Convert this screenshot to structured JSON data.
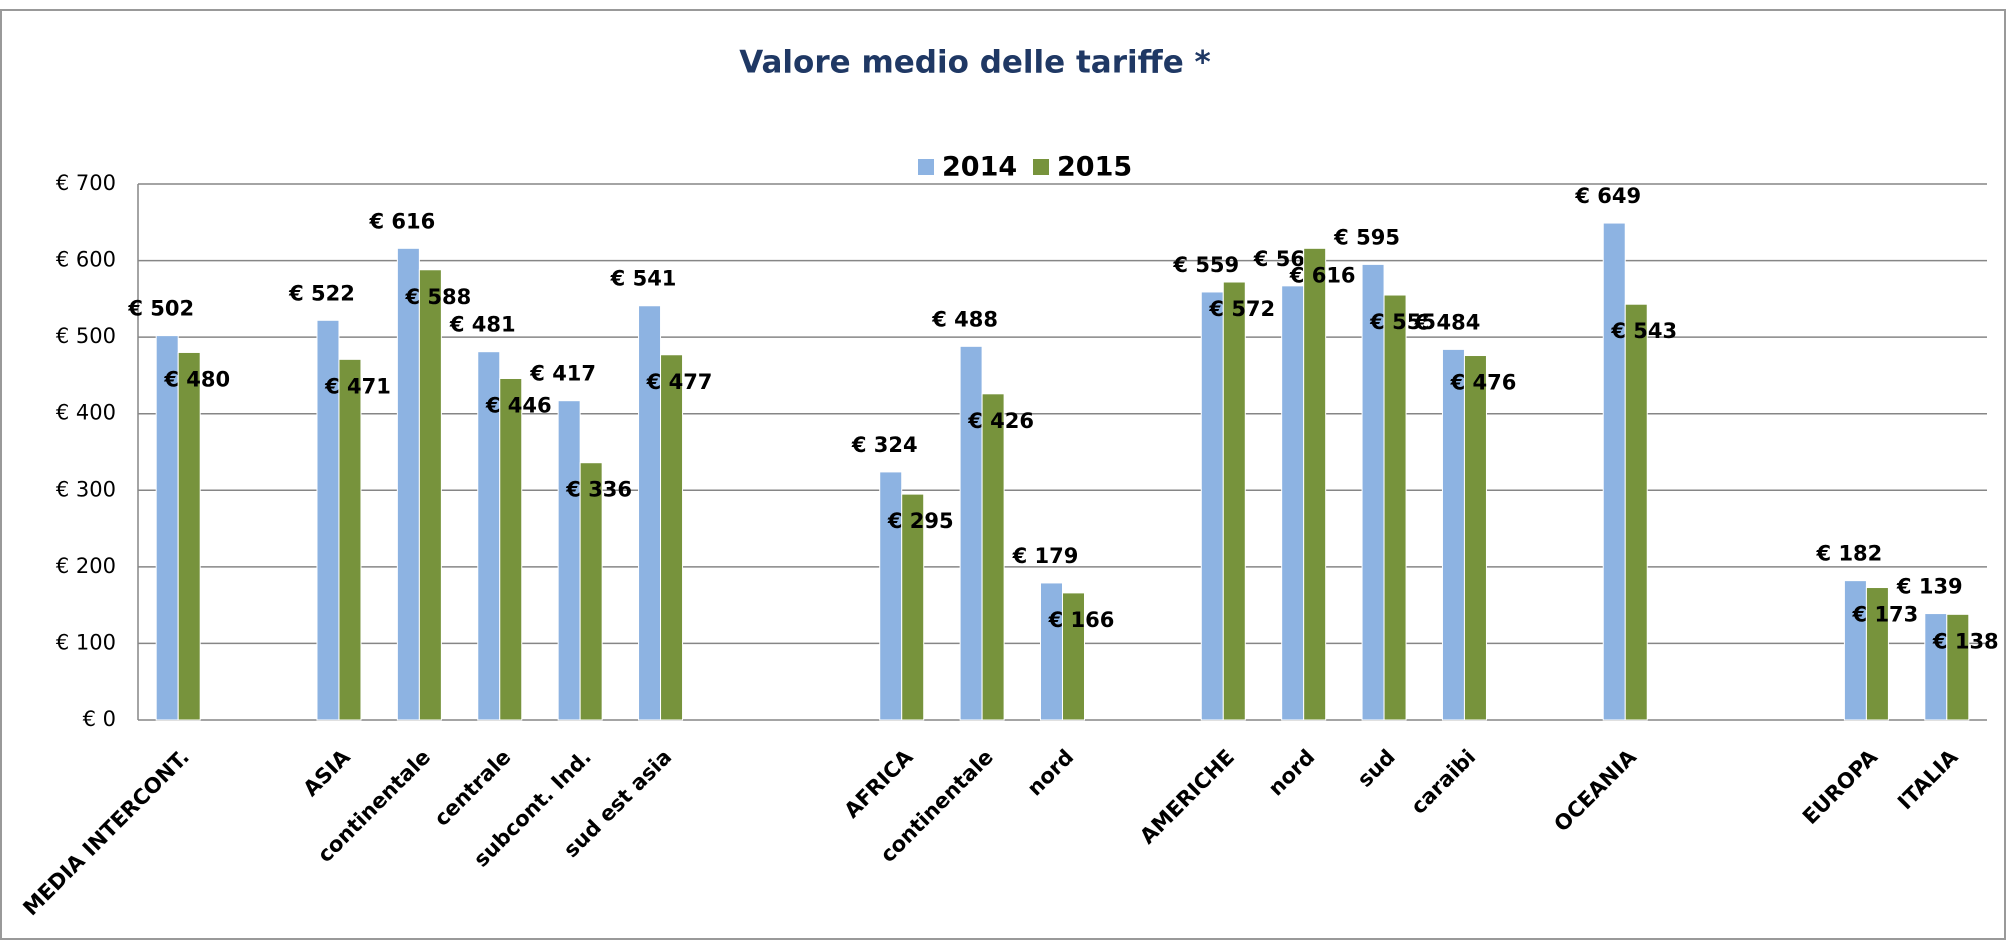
{
  "chart_data": {
    "type": "bar",
    "title": "Valore medio delle tariffe *",
    "categories": [
      "MEDIA INTERCONT.",
      null,
      "ASIA",
      "continentale",
      "centrale",
      "subcont. Ind.",
      "sud est asia",
      null,
      null,
      "AFRICA",
      "continentale",
      "nord",
      null,
      "AMERICHE",
      "nord",
      "sud",
      "caraibi",
      null,
      "OCEANIA",
      null,
      null,
      "EUROPA",
      "ITALIA"
    ],
    "series": [
      {
        "name": "2014",
        "color": "#8db3e2",
        "values": [
          502,
          null,
          522,
          616,
          481,
          417,
          541,
          null,
          null,
          324,
          488,
          179,
          null,
          559,
          567,
          595,
          484,
          null,
          649,
          null,
          null,
          182,
          139
        ],
        "value_labels": [
          "€ 502",
          null,
          "€ 522",
          "€ 616",
          "€ 481",
          "€ 417",
          "€ 541",
          null,
          null,
          "€ 324",
          "€ 488",
          "€ 179",
          null,
          "€ 559",
          "€ 567",
          "€ 595",
          "€ 484",
          null,
          "€ 649",
          null,
          null,
          "€ 182",
          "€ 139"
        ]
      },
      {
        "name": "2015",
        "color": "#77933c",
        "values": [
          480,
          null,
          471,
          588,
          446,
          336,
          477,
          null,
          null,
          295,
          426,
          166,
          null,
          572,
          616,
          555,
          476,
          null,
          543,
          null,
          null,
          173,
          138
        ],
        "value_labels": [
          "€ 480",
          null,
          "€ 471",
          "€ 588",
          "€ 446",
          "€ 336",
          "€ 477",
          null,
          null,
          "€ 295",
          "€ 426",
          "€ 166",
          null,
          "€ 572",
          "€ 616",
          "€ 555",
          "€ 476",
          null,
          "€ 543",
          null,
          null,
          "€ 173",
          "€ 138"
        ]
      }
    ],
    "ylim": [
      0,
      700
    ],
    "yticks": [
      {
        "value": 0,
        "label": "€ 0"
      },
      {
        "value": 100,
        "label": "€ 100"
      },
      {
        "value": 200,
        "label": "€ 200"
      },
      {
        "value": 300,
        "label": "€ 300"
      },
      {
        "value": 400,
        "label": "€ 400"
      },
      {
        "value": 500,
        "label": "€ 500"
      },
      {
        "value": 600,
        "label": "€ 600"
      },
      {
        "value": 700,
        "label": "€ 700"
      }
    ],
    "grid": true,
    "legend": "top"
  }
}
